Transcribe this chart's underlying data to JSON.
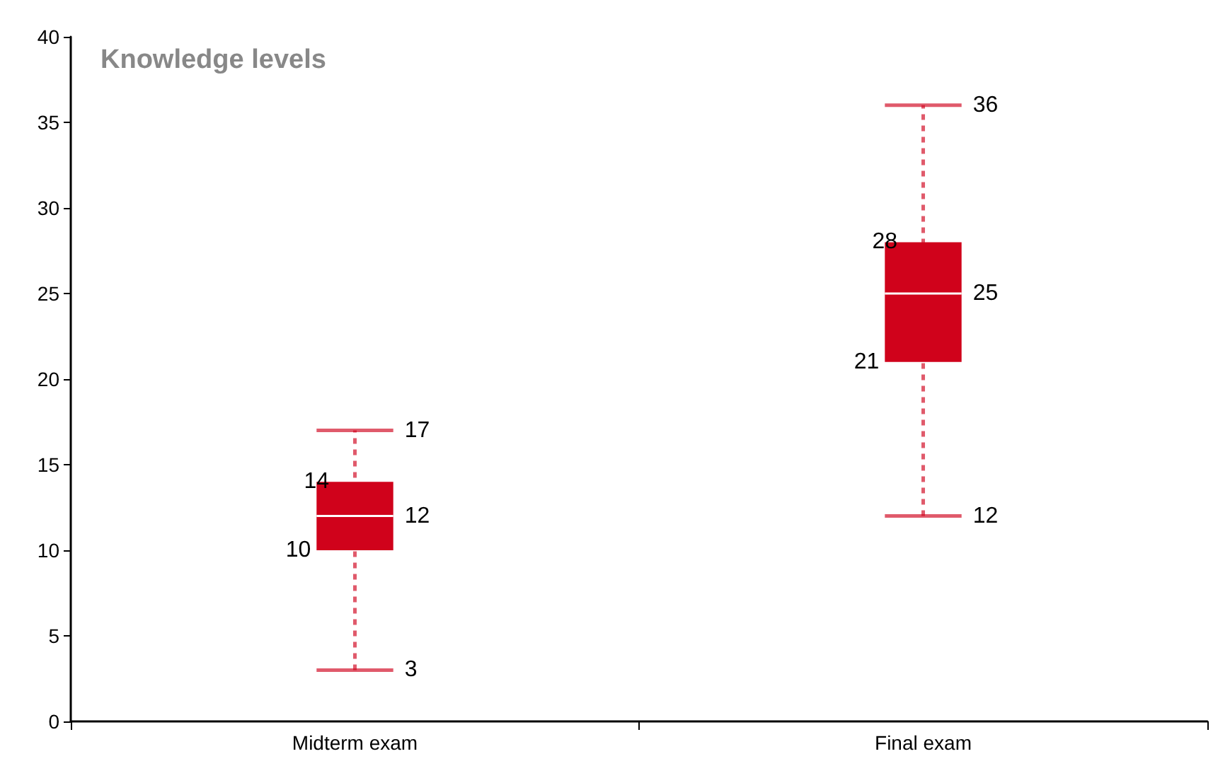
{
  "chart_data": {
    "type": "box",
    "title": "Knowledge levels",
    "categories": [
      "Midterm exam",
      "Final exam"
    ],
    "boxes": [
      {
        "low": 3,
        "q1": 10,
        "median": 12,
        "q3": 14,
        "high": 17
      },
      {
        "low": 12,
        "q1": 21,
        "median": 25,
        "q3": 28,
        "high": 36
      }
    ],
    "annotations": [
      {
        "text": "17",
        "x": "Midterm exam",
        "y": 17
      },
      {
        "text": "14",
        "x": "Midterm exam",
        "y": 14
      },
      {
        "text": "12",
        "x": "Midterm exam",
        "y": 12
      },
      {
        "text": "10",
        "x": "Midterm exam",
        "y": 10
      },
      {
        "text": "3",
        "x": "Midterm exam",
        "y": 3
      },
      {
        "text": "36",
        "x": "Final exam",
        "y": 36
      },
      {
        "text": "28",
        "x": "Final exam",
        "y": 28
      },
      {
        "text": "25",
        "x": "Final exam",
        "y": 25
      },
      {
        "text": "21",
        "x": "Final exam",
        "y": 21
      },
      {
        "text": "12",
        "x": "Final exam",
        "y": 12
      }
    ],
    "color": "#d0021b",
    "line_style": "dashed",
    "ylim": [
      0,
      40
    ],
    "yticks": [
      0,
      5,
      10,
      15,
      20,
      25,
      30,
      35,
      40
    ],
    "grid": false
  }
}
